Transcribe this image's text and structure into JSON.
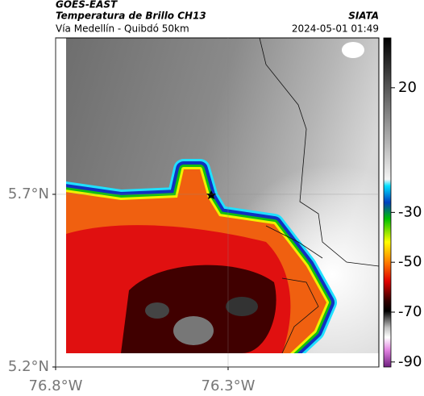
{
  "header": {
    "title": "GOES-EAST",
    "subtitle": "Temperatura de Brillo CH13",
    "location": "Vía Medellín - Quibdó 50km",
    "source": "SIATA",
    "datetime": "2024-05-01 01:49"
  },
  "map": {
    "xlim": [
      -76.8,
      -75.863
    ],
    "ylim": [
      5.2,
      6.153
    ],
    "xticks": [
      {
        "value": -76.8,
        "label": "76.8°W"
      },
      {
        "value": -76.3,
        "label": "76.3°W"
      }
    ],
    "yticks": [
      {
        "value": 5.7,
        "label": "5.7°N"
      },
      {
        "value": 5.2,
        "label": "5.2°N"
      }
    ],
    "grid": true
  },
  "colorbar": {
    "lim": [
      -92,
      40
    ],
    "ticks": [
      20,
      -30,
      -50,
      -70,
      -90
    ]
  }
}
